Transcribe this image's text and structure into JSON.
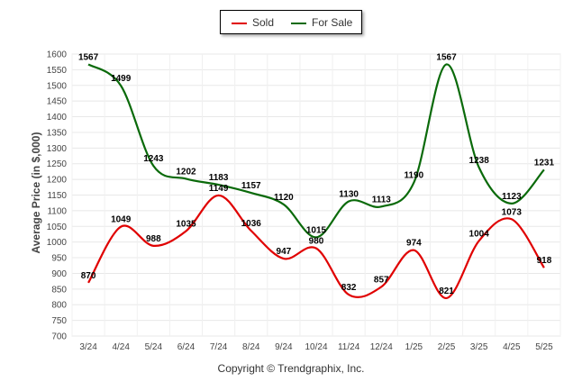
{
  "legend": {
    "sold_label": "Sold",
    "forsale_label": "For Sale"
  },
  "footer": "Copyright © Trendgraphix, Inc.",
  "chart_data": {
    "type": "line",
    "ylabel": "Average Price (in $,000)",
    "xlabel": "",
    "ylim": [
      700,
      1600
    ],
    "ytick_step": 50,
    "categories": [
      "3/24",
      "4/24",
      "5/24",
      "6/24",
      "7/24",
      "8/24",
      "9/24",
      "10/24",
      "11/24",
      "12/24",
      "1/25",
      "2/25",
      "3/25",
      "4/25",
      "5/25"
    ],
    "series": [
      {
        "name": "Sold",
        "color": "#e00000",
        "values": [
          870,
          1049,
          988,
          1035,
          1149,
          1036,
          947,
          980,
          832,
          857,
          974,
          821,
          1004,
          1073,
          918
        ]
      },
      {
        "name": "For Sale",
        "color": "#0a6a0a",
        "values": [
          1567,
          1499,
          1243,
          1202,
          1183,
          1157,
          1120,
          1015,
          1130,
          1113,
          1190,
          1567,
          1238,
          1123,
          1231
        ]
      }
    ],
    "grid": true,
    "legend_position": "top-center"
  }
}
